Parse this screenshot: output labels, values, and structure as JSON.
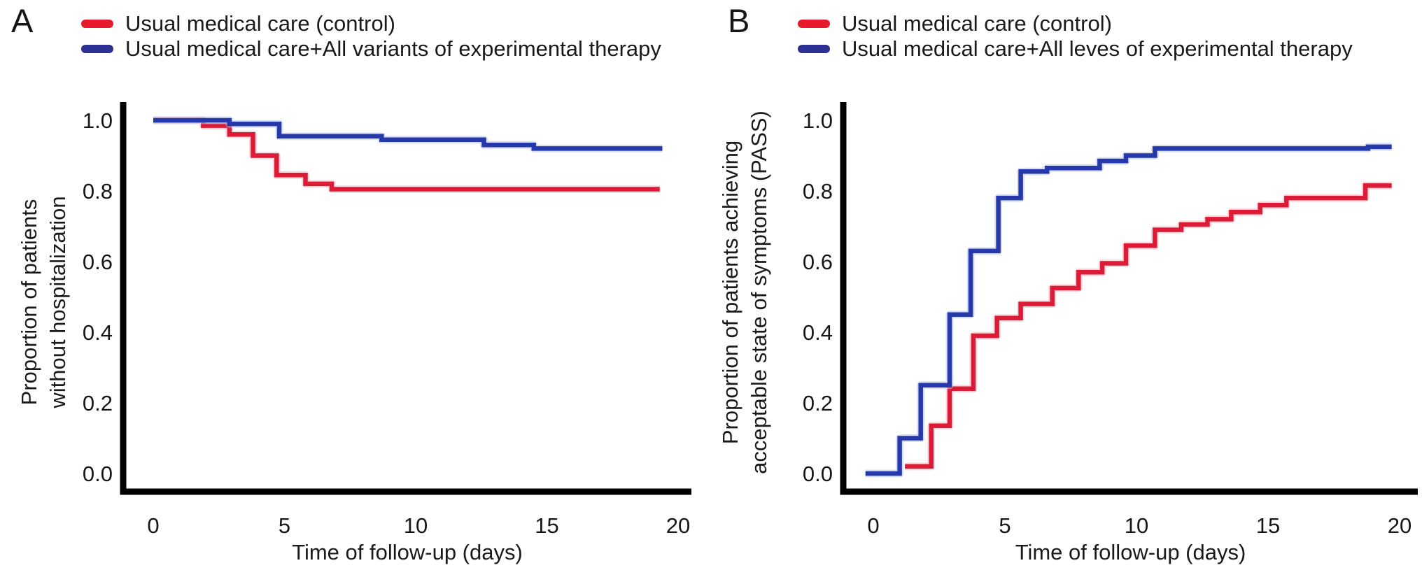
{
  "chart_data": [
    {
      "type": "line",
      "subtype": "kaplan-meier-step",
      "panel_label": "A",
      "xlabel": "Time of follow-up (days)",
      "ylabel_lines": [
        "Proportion of patients",
        "without hospitalization"
      ],
      "xlim": [
        0,
        21
      ],
      "ylim": [
        0,
        1.05
      ],
      "xticks": [
        0,
        5,
        10,
        15,
        20
      ],
      "xtick_labels": [
        "0",
        "5",
        "10",
        "15",
        "20"
      ],
      "ytick_values": [
        0.0,
        0.2,
        0.4,
        0.6,
        0.8,
        1.0
      ],
      "ytick_labels": [
        "0.0",
        "0.2",
        "0.4",
        "0.6",
        "0.8",
        "1.0"
      ],
      "grid": false,
      "legend_position": "top-left",
      "axis_color": "#000000",
      "legend": [
        {
          "label": "Usual medical care (control)",
          "color": "#e8192c"
        },
        {
          "label": "Usual medical care+All variants of experimental therapy",
          "color": "#2c3193"
        }
      ],
      "series": [
        {
          "name": "Usual medical care (control)",
          "color": "#dc1b36",
          "halo": "#f6b9c3",
          "points": [
            [
              0,
              1.0
            ],
            [
              1.9,
              0.985
            ],
            [
              2.9,
              0.96
            ],
            [
              3.8,
              0.9
            ],
            [
              4.7,
              0.845
            ],
            [
              5.8,
              0.82
            ],
            [
              6.8,
              0.805
            ],
            [
              19.3,
              0.805
            ]
          ]
        },
        {
          "name": "Usual medical care+All variants of experimental therapy",
          "color": "#2639aa",
          "halo": "#b9c3ea",
          "points": [
            [
              0,
              1.0
            ],
            [
              2.9,
              0.99
            ],
            [
              4.8,
              0.955
            ],
            [
              8.7,
              0.945
            ],
            [
              12.6,
              0.93
            ],
            [
              14.5,
              0.92
            ],
            [
              19.4,
              0.92
            ]
          ]
        }
      ]
    },
    {
      "type": "line",
      "subtype": "kaplan-meier-step",
      "panel_label": "B",
      "xlabel": "Time of follow-up (days)",
      "ylabel_lines": [
        "Proportion of patients achieving",
        "acceptable state of symptoms (PASS)"
      ],
      "xlim": [
        0,
        21
      ],
      "ylim": [
        0,
        1.05
      ],
      "xticks": [
        0,
        5,
        10,
        15,
        20
      ],
      "xtick_labels": [
        "0",
        "5",
        "10",
        "15",
        "20"
      ],
      "ytick_values": [
        0.0,
        0.2,
        0.4,
        0.6,
        0.8,
        1.0
      ],
      "ytick_labels": [
        "0.0",
        "0.2",
        "0.4",
        "0.6",
        "0.8",
        "1.0"
      ],
      "grid": false,
      "legend_position": "top-left",
      "axis_color": "#000000",
      "legend": [
        {
          "label": "Usual medical care (control)",
          "color": "#e8192c"
        },
        {
          "label": "Usual medical care+All leves of experimental therapy",
          "color": "#2c3193"
        }
      ],
      "series": [
        {
          "name": "Usual medical care (control)",
          "color": "#dc1b36",
          "halo": "#f6b9c3",
          "points": [
            [
              1.2,
              0.02
            ],
            [
              2.2,
              0.135
            ],
            [
              2.9,
              0.24
            ],
            [
              3.8,
              0.39
            ],
            [
              4.7,
              0.44
            ],
            [
              5.6,
              0.48
            ],
            [
              6.8,
              0.525
            ],
            [
              7.8,
              0.57
            ],
            [
              8.7,
              0.595
            ],
            [
              9.6,
              0.645
            ],
            [
              10.7,
              0.69
            ],
            [
              11.7,
              0.705
            ],
            [
              12.7,
              0.72
            ],
            [
              13.6,
              0.74
            ],
            [
              14.7,
              0.76
            ],
            [
              15.7,
              0.78
            ],
            [
              18.7,
              0.815
            ],
            [
              19.7,
              0.815
            ]
          ]
        },
        {
          "name": "Usual medical care+All leves of experimental therapy",
          "color": "#2639aa",
          "halo": "#b9c3ea",
          "points": [
            [
              -0.3,
              0.0
            ],
            [
              1.0,
              0.1
            ],
            [
              1.8,
              0.25
            ],
            [
              2.9,
              0.45
            ],
            [
              3.7,
              0.63
            ],
            [
              4.75,
              0.78
            ],
            [
              5.6,
              0.855
            ],
            [
              6.6,
              0.865
            ],
            [
              8.6,
              0.885
            ],
            [
              9.6,
              0.9
            ],
            [
              10.7,
              0.92
            ],
            [
              18.8,
              0.925
            ],
            [
              19.7,
              0.925
            ]
          ]
        }
      ]
    }
  ]
}
